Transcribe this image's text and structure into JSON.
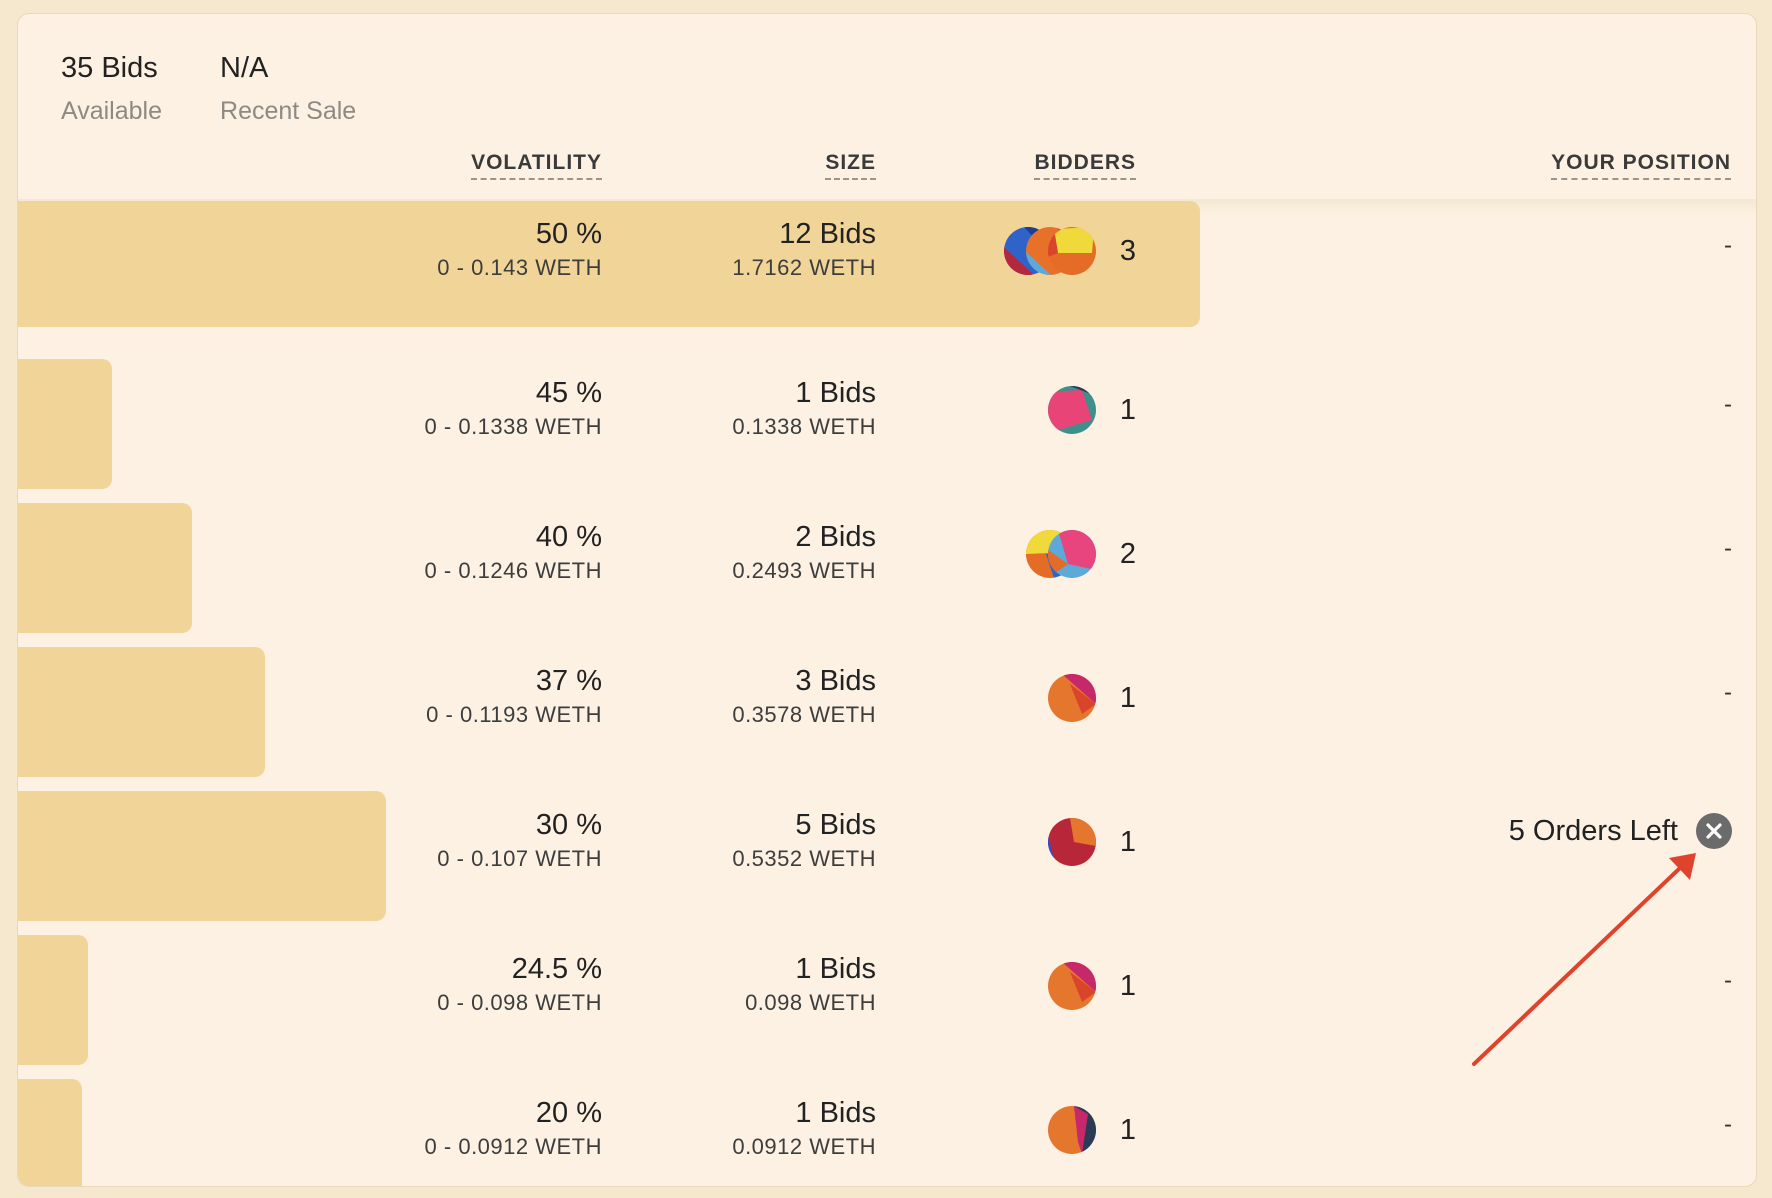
{
  "stats": [
    {
      "value": "35 Bids",
      "label": "Available"
    },
    {
      "value": "N/A",
      "label": "Recent Sale"
    }
  ],
  "headers": {
    "volatility": "VOLATILITY",
    "size": "SIZE",
    "bidders": "BIDDERS",
    "position": "YOUR POSITION"
  },
  "rows": [
    {
      "volatility": "50 %",
      "range": "0 - 0.143 WETH",
      "bids": "12 Bids",
      "size_weth": "1.7162 WETH",
      "bidders": "3",
      "position": "-"
    },
    {
      "volatility": "45 %",
      "range": "0 - 0.1338 WETH",
      "bids": "1 Bids",
      "size_weth": "0.1338 WETH",
      "bidders": "1",
      "position": "-"
    },
    {
      "volatility": "40 %",
      "range": "0 - 0.1246 WETH",
      "bids": "2 Bids",
      "size_weth": "0.2493 WETH",
      "bidders": "2",
      "position": "-"
    },
    {
      "volatility": "37 %",
      "range": "0 - 0.1193 WETH",
      "bids": "3 Bids",
      "size_weth": "0.3578 WETH",
      "bidders": "1",
      "position": "-"
    },
    {
      "volatility": "30 %",
      "range": "0 - 0.107 WETH",
      "bids": "5 Bids",
      "size_weth": "0.5352 WETH",
      "bidders": "1",
      "position": "5 Orders Left"
    },
    {
      "volatility": "24.5 %",
      "range": "0 - 0.098 WETH",
      "bids": "1 Bids",
      "size_weth": "0.098 WETH",
      "bidders": "1",
      "position": "-"
    },
    {
      "volatility": "20 %",
      "range": "0 - 0.0912 WETH",
      "bids": "1 Bids",
      "size_weth": "0.0912 WETH",
      "bidders": "1",
      "position": "-"
    }
  ],
  "depth_fraction": [
    0.68,
    0.054,
    0.1,
    0.142,
    0.212,
    0.04,
    0.037
  ],
  "icons": {
    "cancel": "close-icon",
    "avatar": "bidder-avatar-icon"
  },
  "colors": {
    "panel": "#fcf1e2",
    "bar": "#f1d498",
    "annotation_arrow": "#e0432c"
  }
}
